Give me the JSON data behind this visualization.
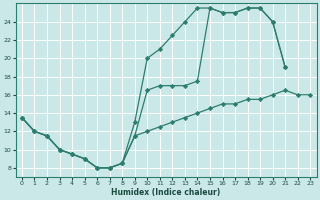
{
  "bg_color": "#cbe8e8",
  "grid_color": "#ffffff",
  "line_color": "#2d7d6e",
  "xlabel": "Humidex (Indice chaleur)",
  "xlim": [
    -0.5,
    23.5
  ],
  "ylim": [
    7.0,
    26.0
  ],
  "yticks": [
    8,
    10,
    12,
    14,
    16,
    18,
    20,
    22,
    24
  ],
  "xticks": [
    0,
    1,
    2,
    3,
    4,
    5,
    6,
    7,
    8,
    9,
    10,
    11,
    12,
    13,
    14,
    15,
    16,
    17,
    18,
    19,
    20,
    21,
    22,
    23
  ],
  "line1_x": [
    0,
    1,
    2,
    3,
    4,
    5,
    6,
    7,
    8,
    9,
    10,
    11,
    12,
    13,
    14,
    15,
    16,
    17,
    18,
    19,
    20,
    21
  ],
  "line1_y": [
    13.5,
    12.0,
    11.5,
    10.0,
    9.5,
    9.0,
    8.0,
    8.0,
    8.5,
    13.0,
    20.0,
    21.0,
    22.5,
    24.0,
    25.5,
    25.5,
    25.0,
    25.0,
    25.5,
    25.5,
    24.0,
    19.0
  ],
  "line2_x": [
    0,
    1,
    2,
    3,
    4,
    5,
    6,
    7,
    8,
    9,
    10,
    11,
    12,
    13,
    14,
    15,
    16,
    17,
    18,
    19,
    20,
    21
  ],
  "line2_y": [
    13.5,
    12.0,
    11.5,
    10.0,
    9.5,
    9.0,
    8.0,
    8.0,
    8.5,
    11.5,
    16.5,
    17.0,
    17.0,
    17.0,
    17.5,
    25.5,
    25.0,
    25.0,
    25.5,
    25.5,
    24.0,
    19.0
  ],
  "line3_x": [
    0,
    1,
    2,
    3,
    4,
    5,
    6,
    7,
    8,
    9,
    10,
    11,
    12,
    13,
    14,
    15,
    16,
    17,
    18,
    19,
    20,
    21,
    22,
    23
  ],
  "line3_y": [
    13.5,
    12.0,
    11.5,
    10.0,
    9.5,
    9.0,
    8.0,
    8.0,
    8.5,
    11.5,
    12.0,
    12.5,
    13.0,
    13.5,
    14.0,
    14.5,
    15.0,
    15.0,
    15.5,
    15.5,
    16.0,
    16.5,
    16.0,
    16.0
  ]
}
